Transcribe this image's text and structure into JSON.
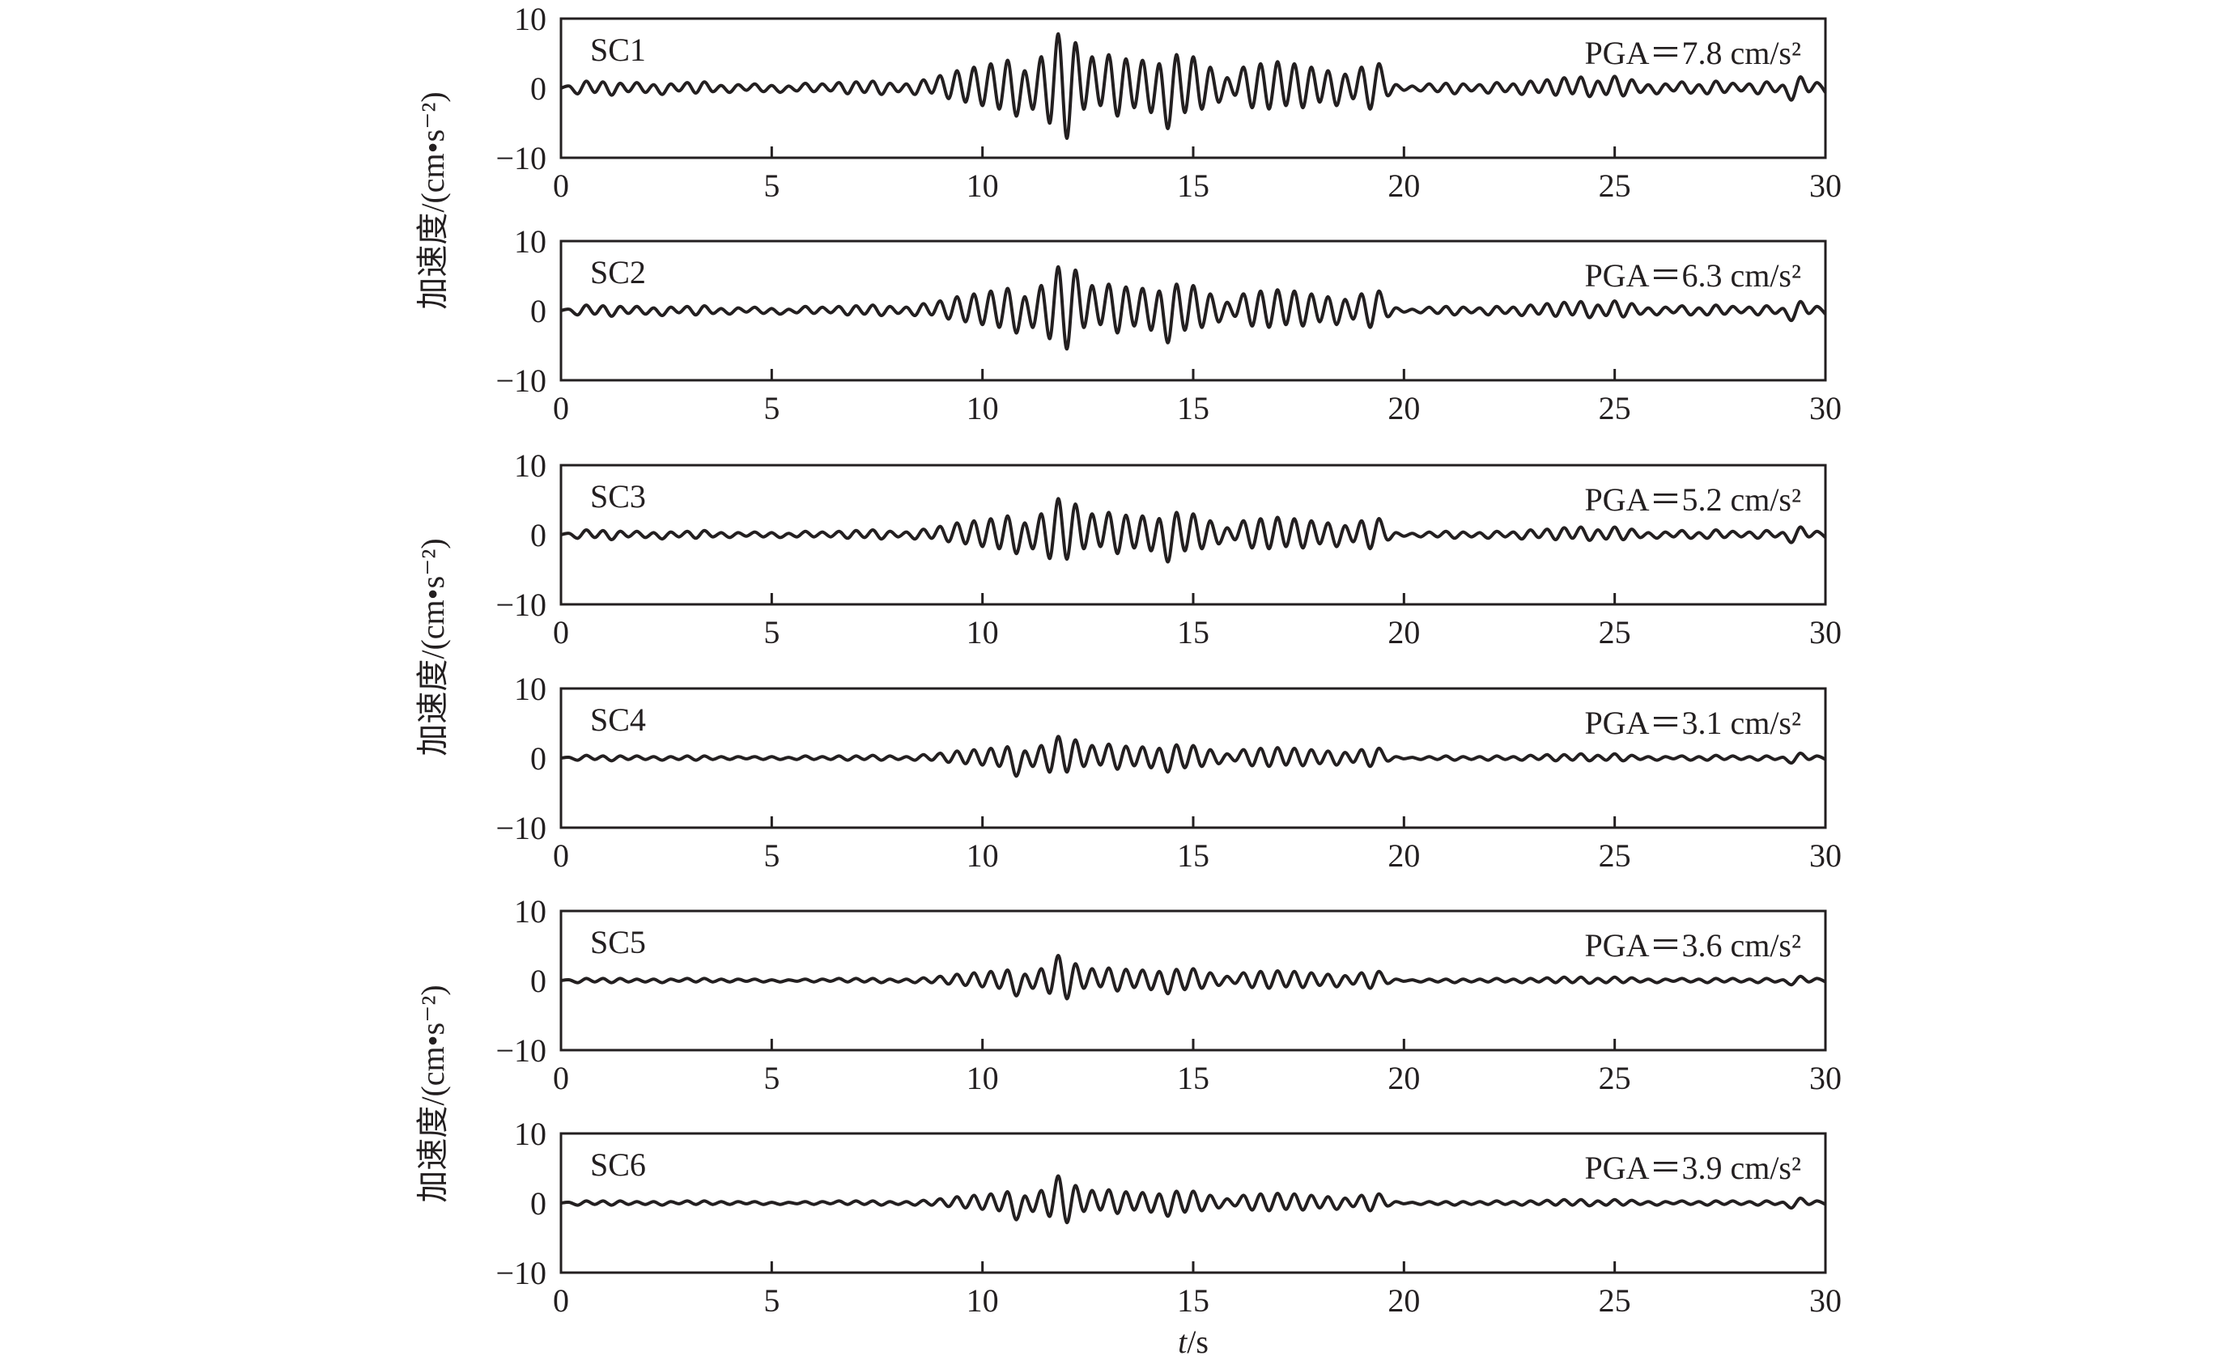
{
  "chart_data": {
    "type": "line",
    "xlabel_italic": "t",
    "xlabel_unit": "/s",
    "ylabel": "加速度/(cm•s⁻²)",
    "xlim": [
      0,
      30
    ],
    "ylim": [
      -10,
      10
    ],
    "xticks": [
      "0",
      "5",
      "10",
      "15",
      "20",
      "25",
      "30"
    ],
    "yticks": [
      "10",
      "0",
      "−10"
    ],
    "grid": false,
    "line_color": "#231f20",
    "x_start": 0,
    "x_step": 0.2,
    "panels": [
      {
        "name": "SC1",
        "pga_label": "PGA＝7.8 cm/s²",
        "pga": 7.8,
        "values": [
          0,
          0.3,
          -0.8,
          1.0,
          -0.6,
          0.9,
          -1.0,
          0.7,
          -0.5,
          0.8,
          -0.6,
          0.5,
          -0.9,
          0.6,
          -0.4,
          0.8,
          -0.7,
          0.9,
          -0.5,
          0.4,
          -0.6,
          0.5,
          -0.3,
          0.6,
          -0.5,
          0.4,
          -0.6,
          0.3,
          -0.4,
          0.7,
          -0.5,
          0.6,
          -0.4,
          0.8,
          -0.8,
          0.9,
          -0.6,
          1.0,
          -0.9,
          0.7,
          -0.5,
          0.6,
          -0.9,
          1.2,
          -0.7,
          1.8,
          -1.5,
          2.5,
          -2.0,
          3.0,
          -2.5,
          3.5,
          -3.0,
          4.0,
          -4.0,
          2.5,
          -3.0,
          4.5,
          -5.0,
          7.8,
          -7.2,
          6.5,
          -3.0,
          4.5,
          -2.5,
          4.8,
          -4.0,
          4.2,
          -2.8,
          4.0,
          -3.5,
          3.5,
          -5.8,
          4.8,
          -3.5,
          4.5,
          -3.0,
          3.0,
          -2.0,
          1.5,
          -1.0,
          3.0,
          -2.8,
          3.5,
          -3.0,
          3.8,
          -2.5,
          3.5,
          -2.8,
          3.0,
          -2.0,
          2.5,
          -2.5,
          2.0,
          -1.5,
          3.0,
          -3.0,
          3.5,
          -1.0,
          0.5,
          -0.3,
          0.3,
          -0.4,
          0.6,
          -0.5,
          0.7,
          -0.8,
          0.6,
          -0.4,
          0.5,
          -0.7,
          0.8,
          -0.5,
          0.6,
          -0.9,
          1.0,
          -0.6,
          1.2,
          -1.0,
          1.5,
          -0.8,
          1.6,
          -1.2,
          1.0,
          -0.9,
          1.7,
          -1.1,
          1.2,
          -0.6,
          0.5,
          -0.8,
          0.6,
          -0.4,
          0.9,
          -0.7,
          0.5,
          -0.8,
          1.0,
          -0.6,
          0.7,
          -0.4,
          0.6,
          -0.8,
          0.9,
          -0.5,
          0.4,
          -1.7,
          1.6,
          -0.5,
          0.8,
          -0.6
        ]
      },
      {
        "name": "SC2",
        "pga_label": "PGA＝6.3 cm/s²",
        "pga": 6.3,
        "values": [
          0,
          0.2,
          -0.6,
          0.8,
          -0.5,
          0.7,
          -0.8,
          0.6,
          -0.4,
          0.6,
          -0.5,
          0.4,
          -0.7,
          0.5,
          -0.3,
          0.6,
          -0.6,
          0.7,
          -0.4,
          0.3,
          -0.5,
          0.4,
          -0.2,
          0.5,
          -0.4,
          0.3,
          -0.5,
          0.2,
          -0.3,
          0.6,
          -0.4,
          0.5,
          -0.3,
          0.6,
          -0.6,
          0.7,
          -0.5,
          0.8,
          -0.7,
          0.6,
          -0.4,
          0.5,
          -0.7,
          1.0,
          -0.6,
          1.4,
          -1.2,
          2.0,
          -1.6,
          2.4,
          -2.0,
          2.8,
          -2.4,
          3.2,
          -3.2,
          2.0,
          -2.4,
          3.6,
          -4.0,
          6.3,
          -5.5,
          5.8,
          -2.4,
          3.6,
          -2.0,
          3.8,
          -3.2,
          3.4,
          -2.2,
          3.2,
          -2.8,
          2.8,
          -4.6,
          3.8,
          -2.8,
          3.6,
          -2.4,
          2.4,
          -1.6,
          1.2,
          -0.8,
          2.4,
          -2.2,
          2.8,
          -2.4,
          3.0,
          -2.0,
          2.8,
          -2.2,
          2.4,
          -1.6,
          2.0,
          -2.0,
          1.6,
          -1.2,
          2.4,
          -2.4,
          2.8,
          -0.8,
          0.4,
          -0.2,
          0.2,
          -0.3,
          0.5,
          -0.4,
          0.6,
          -0.6,
          0.5,
          -0.3,
          0.4,
          -0.6,
          0.6,
          -0.4,
          0.5,
          -0.7,
          0.8,
          -0.5,
          1.0,
          -0.8,
          1.2,
          -0.6,
          1.3,
          -1.0,
          0.8,
          -0.7,
          1.4,
          -0.9,
          1.0,
          -0.5,
          0.4,
          -0.6,
          0.5,
          -0.3,
          0.7,
          -0.6,
          0.4,
          -0.6,
          0.8,
          -0.5,
          0.6,
          -0.3,
          0.5,
          -0.6,
          0.7,
          -0.4,
          0.3,
          -1.4,
          1.3,
          -0.4,
          0.6,
          -0.5
        ]
      },
      {
        "name": "SC3",
        "pga_label": "PGA＝5.2 cm/s²",
        "pga": 5.2,
        "values": [
          0,
          0.2,
          -0.5,
          0.7,
          -0.4,
          0.6,
          -0.7,
          0.5,
          -0.3,
          0.5,
          -0.4,
          0.3,
          -0.6,
          0.4,
          -0.3,
          0.5,
          -0.5,
          0.6,
          -0.3,
          0.3,
          -0.4,
          0.3,
          -0.2,
          0.4,
          -0.3,
          0.3,
          -0.4,
          0.2,
          -0.3,
          0.5,
          -0.3,
          0.4,
          -0.3,
          0.5,
          -0.5,
          0.6,
          -0.4,
          0.7,
          -0.6,
          0.5,
          -0.3,
          0.4,
          -0.6,
          0.8,
          -0.5,
          1.2,
          -1.0,
          1.7,
          -1.3,
          2.0,
          -1.7,
          2.3,
          -2.0,
          2.7,
          -2.7,
          1.7,
          -2.0,
          3.0,
          -3.4,
          5.2,
          -3.5,
          4.4,
          -2.0,
          3.0,
          -1.7,
          3.2,
          -2.7,
          2.8,
          -1.9,
          2.7,
          -2.3,
          2.3,
          -3.9,
          3.2,
          -2.3,
          3.0,
          -2.0,
          2.0,
          -1.3,
          1.0,
          -0.7,
          2.0,
          -1.9,
          2.3,
          -2.0,
          2.5,
          -1.7,
          2.3,
          -1.9,
          2.0,
          -1.3,
          1.7,
          -1.7,
          1.3,
          -1.0,
          2.0,
          -2.0,
          2.3,
          -0.7,
          0.3,
          -0.2,
          0.2,
          -0.3,
          0.4,
          -0.3,
          0.5,
          -0.5,
          0.4,
          -0.3,
          0.3,
          -0.5,
          0.5,
          -0.3,
          0.4,
          -0.6,
          0.7,
          -0.4,
          0.8,
          -0.7,
          1.0,
          -0.5,
          1.1,
          -0.8,
          0.7,
          -0.6,
          1.1,
          -0.7,
          0.8,
          -0.4,
          0.3,
          -0.5,
          0.4,
          -0.3,
          0.6,
          -0.5,
          0.3,
          -0.5,
          0.7,
          -0.4,
          0.5,
          -0.3,
          0.4,
          -0.5,
          0.6,
          -0.3,
          0.3,
          -1.1,
          1.1,
          -0.3,
          0.5,
          -0.4
        ]
      },
      {
        "name": "SC4",
        "pga_label": "PGA＝3.1 cm/s²",
        "pga": 3.1,
        "values": [
          0,
          0.1,
          -0.3,
          0.4,
          -0.2,
          0.3,
          -0.4,
          0.3,
          -0.2,
          0.3,
          -0.2,
          0.2,
          -0.3,
          0.2,
          -0.2,
          0.3,
          -0.3,
          0.3,
          -0.2,
          0.2,
          -0.2,
          0.2,
          -0.1,
          0.2,
          -0.2,
          0.2,
          -0.2,
          0.1,
          -0.2,
          0.3,
          -0.2,
          0.2,
          -0.2,
          0.3,
          -0.3,
          0.3,
          -0.2,
          0.4,
          -0.3,
          0.3,
          -0.2,
          0.2,
          -0.3,
          0.5,
          -0.3,
          0.7,
          -0.6,
          1.0,
          -0.8,
          1.2,
          -1.0,
          1.4,
          -1.2,
          1.6,
          -2.6,
          1.0,
          -1.2,
          1.8,
          -2.0,
          3.1,
          -2.0,
          2.6,
          -1.2,
          1.8,
          -1.0,
          2.0,
          -1.6,
          1.7,
          -1.1,
          1.6,
          -1.4,
          1.4,
          -2.0,
          1.9,
          -1.4,
          1.8,
          -1.2,
          1.2,
          -0.8,
          0.6,
          -0.4,
          1.2,
          -1.1,
          1.4,
          -1.2,
          1.5,
          -1.0,
          1.4,
          -1.1,
          1.2,
          -0.8,
          1.0,
          -1.0,
          0.8,
          -0.6,
          1.2,
          -1.2,
          1.4,
          -0.4,
          0.2,
          -0.1,
          0.1,
          -0.2,
          0.2,
          -0.2,
          0.3,
          -0.3,
          0.2,
          -0.2,
          0.2,
          -0.3,
          0.3,
          -0.2,
          0.2,
          -0.3,
          0.4,
          -0.2,
          0.5,
          -0.4,
          0.5,
          -0.3,
          0.6,
          -0.4,
          0.4,
          -0.3,
          0.6,
          -0.4,
          0.4,
          -0.2,
          0.2,
          -0.3,
          0.2,
          -0.1,
          0.3,
          -0.3,
          0.2,
          -0.3,
          0.4,
          -0.2,
          0.3,
          -0.2,
          0.2,
          -0.3,
          0.3,
          -0.2,
          0.1,
          -0.7,
          0.7,
          -0.2,
          0.3,
          -0.2
        ]
      },
      {
        "name": "SC5",
        "pga_label": "PGA＝3.6 cm/s²",
        "pga": 3.6,
        "values": [
          0,
          0.1,
          -0.3,
          0.3,
          -0.2,
          0.3,
          -0.3,
          0.3,
          -0.2,
          0.2,
          -0.2,
          0.2,
          -0.3,
          0.2,
          -0.1,
          0.3,
          -0.2,
          0.3,
          -0.2,
          0.2,
          -0.2,
          0.2,
          -0.1,
          0.2,
          -0.2,
          0.1,
          -0.2,
          0.1,
          -0.1,
          0.2,
          -0.2,
          0.2,
          -0.1,
          0.3,
          -0.2,
          0.3,
          -0.2,
          0.3,
          -0.3,
          0.2,
          -0.2,
          0.2,
          -0.3,
          0.4,
          -0.3,
          0.6,
          -0.5,
          0.9,
          -0.7,
          1.1,
          -0.9,
          1.3,
          -1.1,
          1.5,
          -2.2,
          0.9,
          -1.1,
          1.7,
          -1.8,
          3.6,
          -2.6,
          2.4,
          -1.1,
          1.7,
          -0.9,
          1.8,
          -1.5,
          1.6,
          -1.0,
          1.5,
          -1.3,
          1.3,
          -1.9,
          1.6,
          -1.3,
          1.7,
          -1.1,
          1.1,
          -0.7,
          0.6,
          -0.4,
          1.1,
          -1.0,
          1.3,
          -1.1,
          1.4,
          -0.9,
          1.3,
          -1.0,
          1.1,
          -0.7,
          0.9,
          -0.9,
          0.7,
          -0.5,
          1.1,
          -1.1,
          1.3,
          -0.4,
          0.2,
          -0.1,
          0.1,
          -0.2,
          0.2,
          -0.2,
          0.2,
          -0.3,
          0.2,
          -0.2,
          0.2,
          -0.2,
          0.3,
          -0.2,
          0.2,
          -0.3,
          0.3,
          -0.2,
          0.4,
          -0.3,
          0.5,
          -0.3,
          0.5,
          -0.4,
          0.3,
          -0.3,
          0.5,
          -0.3,
          0.4,
          -0.2,
          0.2,
          -0.3,
          0.2,
          -0.1,
          0.3,
          -0.2,
          0.2,
          -0.3,
          0.3,
          -0.2,
          0.3,
          -0.2,
          0.2,
          -0.3,
          0.3,
          -0.2,
          0.1,
          -0.6,
          0.6,
          -0.2,
          0.3,
          -0.2
        ]
      },
      {
        "name": "SC6",
        "pga_label": "PGA＝3.9 cm/s²",
        "pga": 3.9,
        "values": [
          0,
          0.1,
          -0.3,
          0.3,
          -0.2,
          0.3,
          -0.3,
          0.3,
          -0.2,
          0.2,
          -0.2,
          0.2,
          -0.3,
          0.2,
          -0.1,
          0.3,
          -0.2,
          0.3,
          -0.2,
          0.2,
          -0.2,
          0.2,
          -0.1,
          0.2,
          -0.2,
          0.1,
          -0.2,
          0.1,
          -0.1,
          0.2,
          -0.2,
          0.2,
          -0.1,
          0.3,
          -0.2,
          0.3,
          -0.2,
          0.3,
          -0.3,
          0.2,
          -0.2,
          0.2,
          -0.3,
          0.4,
          -0.3,
          0.6,
          -0.5,
          0.9,
          -0.7,
          1.1,
          -0.9,
          1.3,
          -1.1,
          1.6,
          -2.4,
          1.0,
          -1.2,
          1.8,
          -1.9,
          3.9,
          -2.8,
          2.5,
          -1.2,
          1.8,
          -1.0,
          1.9,
          -1.5,
          1.6,
          -1.0,
          1.5,
          -1.3,
          1.3,
          -1.9,
          1.7,
          -1.3,
          1.7,
          -1.1,
          1.1,
          -0.7,
          0.6,
          -0.4,
          1.1,
          -1.0,
          1.3,
          -1.1,
          1.4,
          -0.9,
          1.3,
          -1.0,
          1.1,
          -0.7,
          0.9,
          -0.9,
          0.7,
          -0.5,
          1.1,
          -1.1,
          1.3,
          -0.4,
          0.2,
          -0.1,
          0.1,
          -0.2,
          0.2,
          -0.2,
          0.2,
          -0.3,
          0.2,
          -0.2,
          0.2,
          -0.2,
          0.3,
          -0.2,
          0.2,
          -0.3,
          0.3,
          -0.2,
          0.4,
          -0.3,
          0.5,
          -0.3,
          0.5,
          -0.4,
          0.3,
          -0.3,
          0.5,
          -0.3,
          0.4,
          -0.2,
          0.2,
          -0.3,
          0.2,
          -0.1,
          0.3,
          -0.2,
          0.2,
          -0.3,
          0.3,
          -0.2,
          0.3,
          -0.2,
          0.2,
          -0.3,
          0.3,
          -0.2,
          0.1,
          -0.7,
          0.7,
          -0.2,
          0.3,
          -0.2
        ]
      }
    ]
  }
}
